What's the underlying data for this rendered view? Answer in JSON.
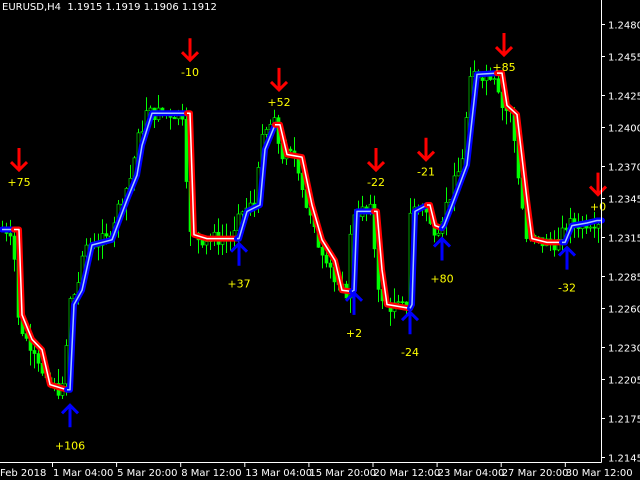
{
  "header": {
    "title": "EURUSD,H4  1.1915 1.1919 1.1906 1.1912"
  },
  "chart_data": {
    "type": "line",
    "title": "EURUSD,H4  1.1915 1.1919 1.1906 1.1912",
    "symbol": "EURUSD",
    "timeframe": "H4",
    "ohlc": {
      "open": 1.1915,
      "high": 1.1919,
      "low": 1.1906,
      "close": 1.1912
    },
    "ylim": [
      1.214,
      1.2497
    ],
    "y_ticks": [
      "1.2480",
      "1.2455",
      "1.2425",
      "1.2400",
      "1.2370",
      "1.2345",
      "1.2315",
      "1.2285",
      "1.2260",
      "1.2230",
      "1.2205",
      "1.2175",
      "1.2145"
    ],
    "x_ticks": [
      "Feb 2018",
      "1 Mar 04:00",
      "5 Mar 20:00",
      "8 Mar 12:00",
      "13 Mar 04:00",
      "15 Mar 20:00",
      "20 Mar 12:00",
      "23 Mar 04:00",
      "27 Mar 20:00",
      "30 Mar 12:00"
    ],
    "grid": false,
    "colors": {
      "background": "#000000",
      "candles": "#00ff00",
      "up_line": "#0000ff",
      "down_line": "#ff0000",
      "up_inner": "#a0c8ff",
      "down_inner": "#ffffff",
      "signal_text": "#ffff00",
      "axis": "#ffffff"
    },
    "trend_segments": [
      {
        "trend": "up",
        "points": [
          [
            0,
            1.2321
          ],
          [
            3,
            1.2321
          ]
        ]
      },
      {
        "trend": "down",
        "points": [
          [
            3,
            1.2321
          ],
          [
            4.25,
            1.2321
          ],
          [
            5,
            1.2255
          ],
          [
            7.5,
            1.2236
          ],
          [
            10,
            1.2228
          ],
          [
            12,
            1.2201
          ],
          [
            16.25,
            1.2197
          ]
        ]
      },
      {
        "trend": "up",
        "points": [
          [
            16.25,
            1.2197
          ],
          [
            17,
            1.2197
          ],
          [
            18,
            1.2263
          ],
          [
            20,
            1.2274
          ],
          [
            22.5,
            1.2309
          ],
          [
            27.5,
            1.2313
          ],
          [
            31.25,
            1.2344
          ],
          [
            33.75,
            1.2363
          ],
          [
            35,
            1.2386
          ],
          [
            37.5,
            1.2411
          ],
          [
            46.25,
            1.2411
          ]
        ]
      },
      {
        "trend": "down",
        "points": [
          [
            46.25,
            1.2411
          ],
          [
            47,
            1.2411
          ],
          [
            48,
            1.2317
          ],
          [
            51.25,
            1.2314
          ],
          [
            58.75,
            1.2314
          ]
        ]
      },
      {
        "trend": "up",
        "points": [
          [
            58.75,
            1.2314
          ],
          [
            59.25,
            1.2314
          ],
          [
            61.25,
            1.2335
          ],
          [
            64.5,
            1.234
          ],
          [
            65.75,
            1.2383
          ],
          [
            68.25,
            1.2402
          ]
        ]
      },
      {
        "trend": "down",
        "points": [
          [
            68.25,
            1.2402
          ],
          [
            69.5,
            1.2402
          ],
          [
            71.25,
            1.2379
          ],
          [
            75,
            1.2377
          ],
          [
            77.5,
            1.234
          ],
          [
            80,
            1.2313
          ],
          [
            83.25,
            1.2297
          ],
          [
            85,
            1.2274
          ],
          [
            87.5,
            1.2273
          ]
        ]
      },
      {
        "trend": "up",
        "points": [
          [
            87.5,
            1.2273
          ],
          [
            88,
            1.2274
          ],
          [
            88.75,
            1.2335
          ],
          [
            93,
            1.2335
          ]
        ]
      },
      {
        "trend": "down",
        "points": [
          [
            93,
            1.2335
          ],
          [
            93.75,
            1.2335
          ],
          [
            95,
            1.229
          ],
          [
            96.25,
            1.2263
          ],
          [
            102,
            1.226
          ]
        ]
      },
      {
        "trend": "up",
        "points": [
          [
            102,
            1.226
          ],
          [
            102.5,
            1.2263
          ],
          [
            103.25,
            1.2335
          ],
          [
            106.25,
            1.234
          ]
        ]
      },
      {
        "trend": "down",
        "points": [
          [
            106.25,
            1.234
          ],
          [
            107,
            1.234
          ],
          [
            108.25,
            1.2324
          ],
          [
            110,
            1.2322
          ]
        ]
      },
      {
        "trend": "up",
        "points": [
          [
            110,
            1.2322
          ],
          [
            110.5,
            1.2324
          ],
          [
            112.5,
            1.234
          ],
          [
            116.25,
            1.2371
          ],
          [
            118.75,
            1.2441
          ],
          [
            123.75,
            1.2442
          ]
        ]
      },
      {
        "trend": "down",
        "points": [
          [
            123.75,
            1.2442
          ],
          [
            125,
            1.2442
          ],
          [
            126.25,
            1.2417
          ],
          [
            128.75,
            1.241
          ],
          [
            131.25,
            1.2344
          ],
          [
            132.5,
            1.2314
          ],
          [
            136.25,
            1.2311
          ],
          [
            140,
            1.2311
          ]
        ]
      },
      {
        "trend": "up",
        "points": [
          [
            140,
            1.2311
          ],
          [
            140.75,
            1.2311
          ],
          [
            142.5,
            1.2324
          ],
          [
            146.25,
            1.2326
          ],
          [
            148.75,
            1.2328
          ],
          [
            150,
            1.2328
          ]
        ]
      }
    ],
    "signals": [
      {
        "dir": "sell",
        "bar": 4.25,
        "price": 1.2367,
        "label": "+75"
      },
      {
        "dir": "buy",
        "bar": 17,
        "price": 1.2185,
        "label": "+106"
      },
      {
        "dir": "sell",
        "bar": 47,
        "price": 1.2452,
        "label": "-10"
      },
      {
        "dir": "buy",
        "bar": 59.25,
        "price": 1.231,
        "label": "+37"
      },
      {
        "dir": "sell",
        "bar": 69.25,
        "price": 1.2429,
        "label": "+52"
      },
      {
        "dir": "buy",
        "bar": 88,
        "price": 1.2272,
        "label": "+2"
      },
      {
        "dir": "sell",
        "bar": 93.5,
        "price": 1.2367,
        "label": "-22"
      },
      {
        "dir": "buy",
        "bar": 102,
        "price": 1.2257,
        "label": "-24"
      },
      {
        "dir": "sell",
        "bar": 106,
        "price": 1.2375,
        "label": "-21"
      },
      {
        "dir": "buy",
        "bar": 110,
        "price": 1.2314,
        "label": "+80"
      },
      {
        "dir": "sell",
        "bar": 125.5,
        "price": 1.2456,
        "label": "+85"
      },
      {
        "dir": "buy",
        "bar": 141.25,
        "price": 1.2307,
        "label": "-32"
      },
      {
        "dir": "sell",
        "bar": 149,
        "price": 1.2348,
        "label": "+0"
      }
    ]
  }
}
